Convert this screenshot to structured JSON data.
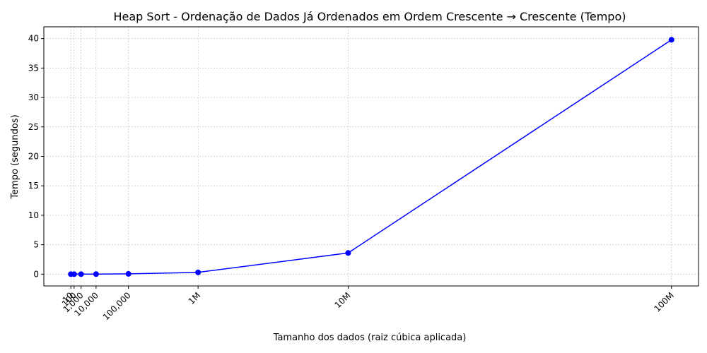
{
  "chart_data": {
    "type": "line",
    "title": "Heap Sort - Ordenação de Dados Já Ordenados em Ordem Crescente → Crescente (Tempo)",
    "xlabel": "Tamanho dos dados (raiz cúbica aplicada)",
    "ylabel": "Tempo (segundos)",
    "x_scale": "cube-root",
    "x_ticks": [
      {
        "value": 10,
        "label": "10"
      },
      {
        "value": 100,
        "label": "100"
      },
      {
        "value": 1000,
        "label": "1,000"
      },
      {
        "value": 10000,
        "label": "10,000"
      },
      {
        "value": 100000,
        "label": "100,000"
      },
      {
        "value": 1000000,
        "label": "1M"
      },
      {
        "value": 10000000,
        "label": "10M"
      },
      {
        "value": 100000000,
        "label": "100M"
      }
    ],
    "y_ticks": [
      0,
      5,
      10,
      15,
      20,
      25,
      30,
      35,
      40
    ],
    "ylim": [
      -2,
      42
    ],
    "grid": true,
    "color": "#0000ff",
    "series": [
      {
        "x": [
          10,
          100,
          1000,
          10000,
          100000,
          1000000,
          10000000,
          100000000
        ],
        "y": [
          0.0,
          0.0,
          0.0,
          0.01,
          0.05,
          0.3,
          3.6,
          39.8
        ]
      }
    ]
  }
}
